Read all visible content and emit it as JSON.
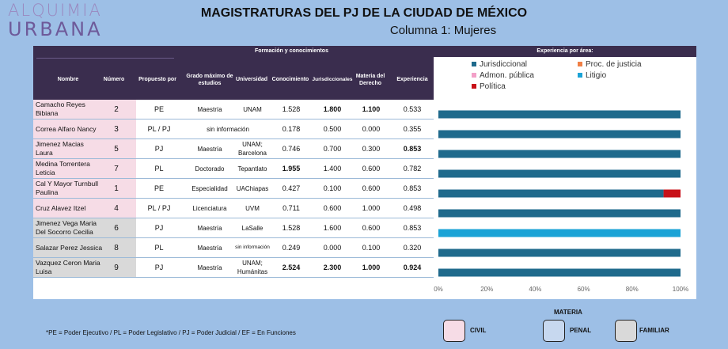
{
  "logo": {
    "line1": "ALQUIMIA",
    "line2": "URBANA"
  },
  "title": "MAGISTRATURAS DEL PJ DE LA CIUDAD DE MÉXICO",
  "subtitle": "Columna 1: Mujeres",
  "table": {
    "group_header": "Formación y conocimientos",
    "headers": {
      "nombre": "Nombre",
      "numero": "Número",
      "propuesto": "Propuesto por",
      "grado": "Grado máximo de estudios",
      "universidad": "Universidad",
      "conocimiento": "Conocimiento",
      "jurisdiccionales": "Jurisdiccionales",
      "materia": "Materia del Derecho",
      "experiencia": "Experiencia"
    },
    "rows": [
      {
        "nombre": "Camacho Reyes Bibiana",
        "numero": "2",
        "propuesto": "PE",
        "grado": "Maestría",
        "universidad": "UNAM",
        "conocimiento": "1.528",
        "jurisdiccionales": "1.800",
        "materia": "1.100",
        "experiencia": "0.533",
        "materia_color": "civil"
      },
      {
        "nombre": "Correa Alfaro Nancy",
        "numero": "3",
        "propuesto": "PL / PJ",
        "grado": "",
        "universidad": "sin información",
        "conocimiento": "0.178",
        "jurisdiccionales": "0.500",
        "materia": "0.000",
        "experiencia": "0.355",
        "materia_color": "civil"
      },
      {
        "nombre": "Jimenez Macias Laura",
        "numero": "5",
        "propuesto": "PJ",
        "grado": "Maestría",
        "universidad": "UNAM; Barcelona",
        "conocimiento": "0.746",
        "jurisdiccionales": "0.700",
        "materia": "0.300",
        "experiencia": "0.853",
        "materia_color": "civil"
      },
      {
        "nombre": "Medina Torrentera Leticia",
        "numero": "7",
        "propuesto": "PL",
        "grado": "Doctorado",
        "universidad": "Tepantlato",
        "conocimiento": "1.955",
        "jurisdiccionales": "1.400",
        "materia": "0.600",
        "experiencia": "0.782",
        "materia_color": "civil"
      },
      {
        "nombre": "Cal Y Mayor Turnbull Paulina",
        "numero": "1",
        "propuesto": "PE",
        "grado": "Especialidad",
        "universidad": "UAChiapas",
        "conocimiento": "0.427",
        "jurisdiccionales": "0.100",
        "materia": "0.600",
        "experiencia": "0.853",
        "materia_color": "civil"
      },
      {
        "nombre": "Cruz Alavez Itzel",
        "numero": "4",
        "propuesto": "PL / PJ",
        "grado": "Licenciatura",
        "universidad": "UVM",
        "conocimiento": "0.711",
        "jurisdiccionales": "0.600",
        "materia": "1.000",
        "experiencia": "0.498",
        "materia_color": "civil"
      },
      {
        "nombre": "Jimenez Vega Maria Del Socorro Cecilia",
        "numero": "6",
        "propuesto": "PJ",
        "grado": "Maestría",
        "universidad": "LaSalle",
        "conocimiento": "1.528",
        "jurisdiccionales": "1.600",
        "materia": "0.600",
        "experiencia": "0.853",
        "materia_color": "familiar"
      },
      {
        "nombre": "Salazar Perez Jessica",
        "numero": "8",
        "propuesto": "PL",
        "grado": "Maestría",
        "universidad": "sin información",
        "conocimiento": "0.249",
        "jurisdiccionales": "0.000",
        "materia": "0.100",
        "experiencia": "0.320",
        "materia_color": "familiar"
      },
      {
        "nombre": "Vazquez Ceron Maria Luisa",
        "numero": "9",
        "propuesto": "PJ",
        "grado": "Maestría",
        "universidad": "UNAM; Humánitas",
        "conocimiento": "2.524",
        "jurisdiccionales": "2.300",
        "materia": "1.000",
        "experiencia": "0.924",
        "materia_color": "familiar"
      }
    ]
  },
  "chart_data": {
    "type": "bar",
    "orientation": "horizontal",
    "stacked": "percent",
    "title": "Experiencia por área:",
    "categories": [
      "Camacho Reyes Bibiana",
      "Correa Alfaro Nancy",
      "Jimenez Macias Laura",
      "Medina Torrentera Leticia",
      "Cal Y Mayor Turnbull Paulina",
      "Cruz Alavez Itzel",
      "Jimenez Vega Maria Del Socorro Cecilia",
      "Salazar Perez Jessica",
      "Vazquez Ceron Maria Luisa"
    ],
    "series": [
      {
        "name": "Jurisdiccional",
        "color": "#1f6a8c",
        "values": [
          100,
          100,
          100,
          100,
          93,
          100,
          0,
          100,
          100
        ]
      },
      {
        "name": "Proc. de justicia",
        "color": "#f07f45",
        "values": [
          0,
          0,
          0,
          0,
          0,
          0,
          0,
          0,
          0
        ]
      },
      {
        "name": "Admon. pública",
        "color": "#f3a0c8",
        "values": [
          0,
          0,
          0,
          0,
          0,
          0,
          0,
          0,
          0
        ]
      },
      {
        "name": "Litigio",
        "color": "#1ba3d6",
        "values": [
          0,
          0,
          0,
          0,
          0,
          0,
          100,
          0,
          0
        ]
      },
      {
        "name": "Política",
        "color": "#c81018",
        "values": [
          0,
          0,
          0,
          0,
          7,
          0,
          0,
          0,
          0
        ]
      }
    ],
    "xlim": [
      0,
      100
    ],
    "xticks": [
      "0%",
      "20%",
      "40%",
      "60%",
      "80%",
      "100%"
    ],
    "legend_position": "top-left"
  },
  "materia_legend": {
    "title": "MATERIA",
    "items": [
      {
        "label": "CIVIL",
        "color": "#f6dce6"
      },
      {
        "label": "PENAL",
        "color": "#c7d8ef"
      },
      {
        "label": "FAMILIAR",
        "color": "#d9d9d9"
      }
    ]
  },
  "footnote": "*PE = Poder Ejecutivo / PL = Poder Legislativo / PJ = Poder Judicial / EF = En Funciones"
}
